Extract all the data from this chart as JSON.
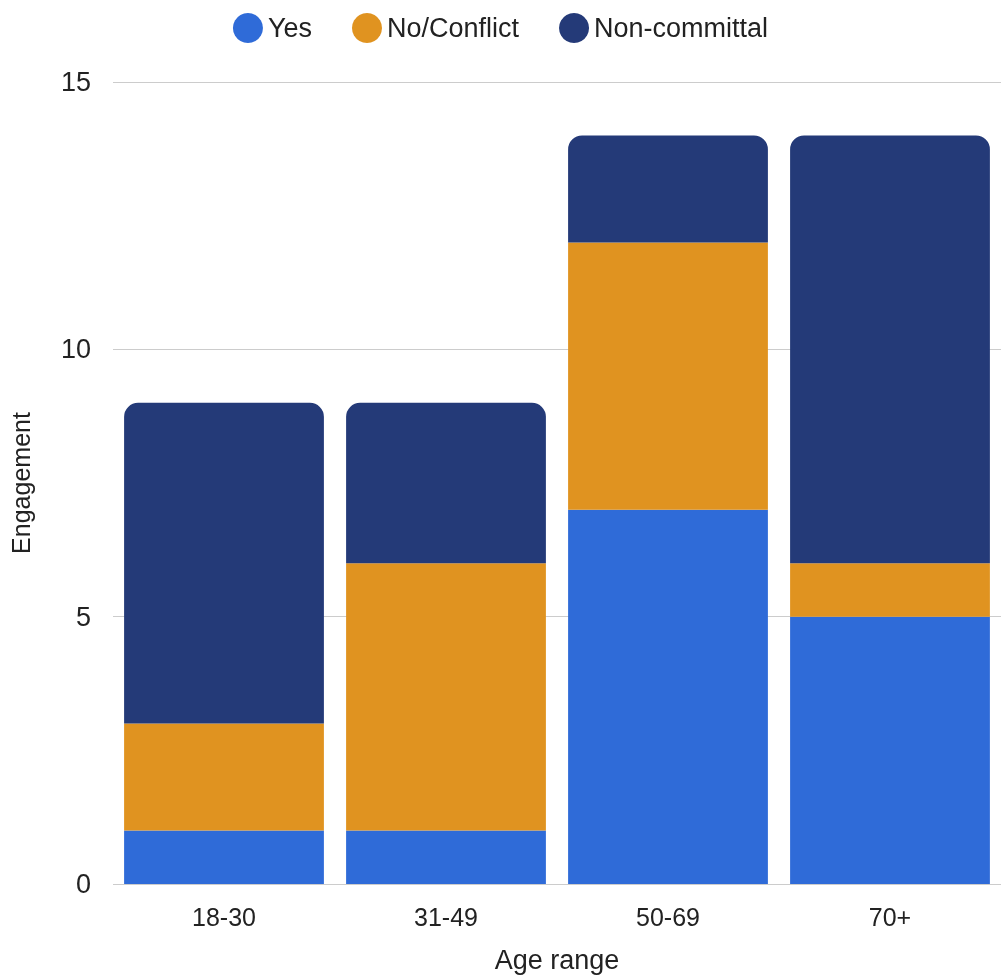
{
  "chart_data": {
    "type": "bar",
    "stacked": true,
    "xlabel": "Age range",
    "ylabel": "Engagement",
    "categories": [
      "18-30",
      "31-49",
      "50-69",
      "70+"
    ],
    "series": [
      {
        "name": "Yes",
        "color": "#2f6bd8",
        "values": [
          1,
          1,
          7,
          5
        ]
      },
      {
        "name": "No/Conflict",
        "color": "#e09320",
        "values": [
          2,
          5,
          5,
          1
        ]
      },
      {
        "name": "Non-committal",
        "color": "#243a78",
        "values": [
          6,
          3,
          2,
          8
        ]
      }
    ],
    "ylim": [
      0,
      15
    ],
    "yticks": [
      0,
      5,
      10,
      15
    ],
    "grid": "y",
    "legend": "top"
  }
}
